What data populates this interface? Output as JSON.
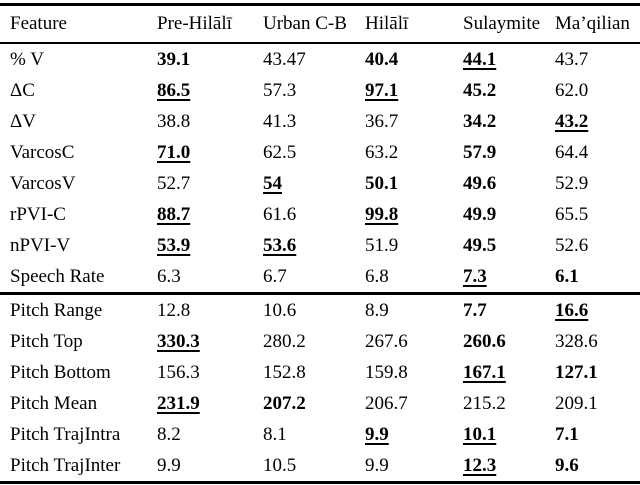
{
  "colors": {
    "background": "#ffffff",
    "text": "#000000",
    "rule": "#000000"
  },
  "table": {
    "columns": [
      "Feature",
      "Pre-Hilālī",
      "Urban C-B",
      "Hilālī",
      "Sulaymite",
      "Ma’qilian"
    ],
    "style_legend": {
      "n": "normal",
      "b": "bold",
      "bu": "bold-underlined"
    },
    "sections": [
      {
        "rows": [
          {
            "feature": "% V",
            "values": [
              "39.1",
              "43.47",
              "40.4",
              "44.1",
              "43.7"
            ],
            "styles": [
              "b",
              "n",
              "b",
              "bu",
              "n"
            ]
          },
          {
            "feature": "ΔC",
            "values": [
              "86.5",
              "57.3",
              "97.1",
              "45.2",
              "62.0"
            ],
            "styles": [
              "bu",
              "n",
              "bu",
              "b",
              "n"
            ]
          },
          {
            "feature": "ΔV",
            "values": [
              "38.8",
              "41.3",
              "36.7",
              "34.2",
              "43.2"
            ],
            "styles": [
              "n",
              "n",
              "n",
              "b",
              "bu"
            ]
          },
          {
            "feature": "VarcosC",
            "values": [
              "71.0",
              "62.5",
              "63.2",
              "57.9",
              "64.4"
            ],
            "styles": [
              "bu",
              "n",
              "n",
              "b",
              "n"
            ]
          },
          {
            "feature": "VarcosV",
            "values": [
              "52.7",
              "54",
              "50.1",
              "49.6",
              "52.9"
            ],
            "styles": [
              "n",
              "bu",
              "b",
              "b",
              "n"
            ]
          },
          {
            "feature": "rPVI-C",
            "values": [
              "88.7",
              "61.6",
              "99.8",
              "49.9",
              "65.5"
            ],
            "styles": [
              "bu",
              "n",
              "bu",
              "b",
              "n"
            ]
          },
          {
            "feature": "nPVI-V",
            "values": [
              "53.9",
              "53.6",
              "51.9",
              "49.5",
              "52.6"
            ],
            "styles": [
              "bu",
              "bu",
              "n",
              "b",
              "n"
            ]
          },
          {
            "feature": "Speech Rate",
            "values": [
              "6.3",
              "6.7",
              "6.8",
              "7.3",
              "6.1"
            ],
            "styles": [
              "n",
              "n",
              "n",
              "bu",
              "b"
            ]
          }
        ]
      },
      {
        "rows": [
          {
            "feature": "Pitch Range",
            "values": [
              "12.8",
              "10.6",
              "8.9",
              "7.7",
              "16.6"
            ],
            "styles": [
              "n",
              "n",
              "n",
              "b",
              "bu"
            ]
          },
          {
            "feature": "Pitch Top",
            "values": [
              "330.3",
              "280.2",
              "267.6",
              "260.6",
              "328.6"
            ],
            "styles": [
              "bu",
              "n",
              "n",
              "b",
              "n"
            ]
          },
          {
            "feature": "Pitch Bottom",
            "values": [
              "156.3",
              "152.8",
              "159.8",
              "167.1",
              "127.1"
            ],
            "styles": [
              "n",
              "n",
              "n",
              "bu",
              "b"
            ]
          },
          {
            "feature": "Pitch Mean",
            "values": [
              "231.9",
              "207.2",
              "206.7",
              "215.2",
              "209.1"
            ],
            "styles": [
              "bu",
              "b",
              "n",
              "n",
              "n"
            ]
          },
          {
            "feature": "Pitch TrajIntra",
            "values": [
              "8.2",
              "8.1",
              "9.9",
              "10.1",
              "7.1"
            ],
            "styles": [
              "n",
              "n",
              "bu",
              "bu",
              "b"
            ]
          },
          {
            "feature": "Pitch TrajInter",
            "values": [
              "9.9",
              "10.5",
              "9.9",
              "12.3",
              "9.6"
            ],
            "styles": [
              "n",
              "n",
              "n",
              "bu",
              "b"
            ]
          }
        ]
      }
    ]
  }
}
